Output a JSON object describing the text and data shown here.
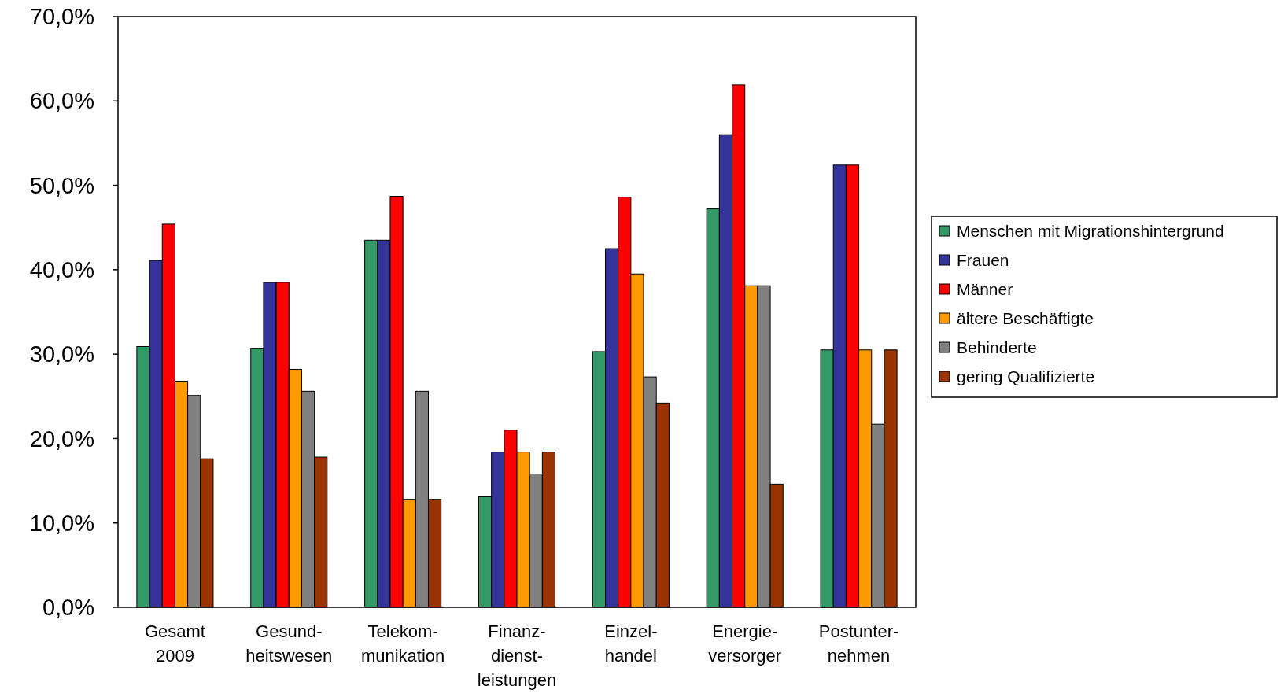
{
  "chart_data": {
    "type": "bar",
    "categories": [
      "Gesamt\n2009",
      "Gesund-\nheitswesen",
      "Telekom-\nmunikation",
      "Finanz-\ndienst-\nleistungen",
      "Einzel-\nhandel",
      "Energie-\nversorger",
      "Postunter-\nnehmen"
    ],
    "series": [
      {
        "name": "Menschen mit Migrationshintergrund",
        "color": "#339966",
        "values": [
          30.9,
          30.7,
          43.5,
          13.1,
          30.3,
          47.2,
          30.5
        ]
      },
      {
        "name": "Frauen",
        "color": "#333399",
        "values": [
          41.1,
          38.5,
          43.5,
          18.4,
          42.5,
          56.0,
          52.4
        ]
      },
      {
        "name": "Männer",
        "color": "#ff0000",
        "values": [
          45.4,
          38.5,
          48.7,
          21.0,
          48.6,
          61.9,
          52.4
        ]
      },
      {
        "name": "ältere Beschäftigte",
        "color": "#ff9900",
        "values": [
          26.8,
          28.2,
          12.8,
          18.4,
          39.5,
          38.1,
          30.5
        ]
      },
      {
        "name": "Behinderte",
        "color": "#808080",
        "values": [
          25.1,
          25.6,
          25.6,
          15.8,
          27.3,
          38.1,
          21.7
        ]
      },
      {
        "name": "gering Qualifizierte",
        "color": "#993300",
        "values": [
          17.6,
          17.8,
          12.8,
          18.4,
          24.2,
          14.6,
          30.5
        ]
      }
    ],
    "ylim": [
      0,
      70
    ],
    "yticks": [
      {
        "value": 0,
        "label": "0,0%"
      },
      {
        "value": 10,
        "label": "10,0%"
      },
      {
        "value": 20,
        "label": "20,0%"
      },
      {
        "value": 30,
        "label": "30,0%"
      },
      {
        "value": 40,
        "label": "40,0%"
      },
      {
        "value": 50,
        "label": "50,0%"
      },
      {
        "value": 60,
        "label": "60,0%"
      },
      {
        "value": 70,
        "label": "70,0%"
      }
    ],
    "grid": false,
    "legend": "right"
  }
}
